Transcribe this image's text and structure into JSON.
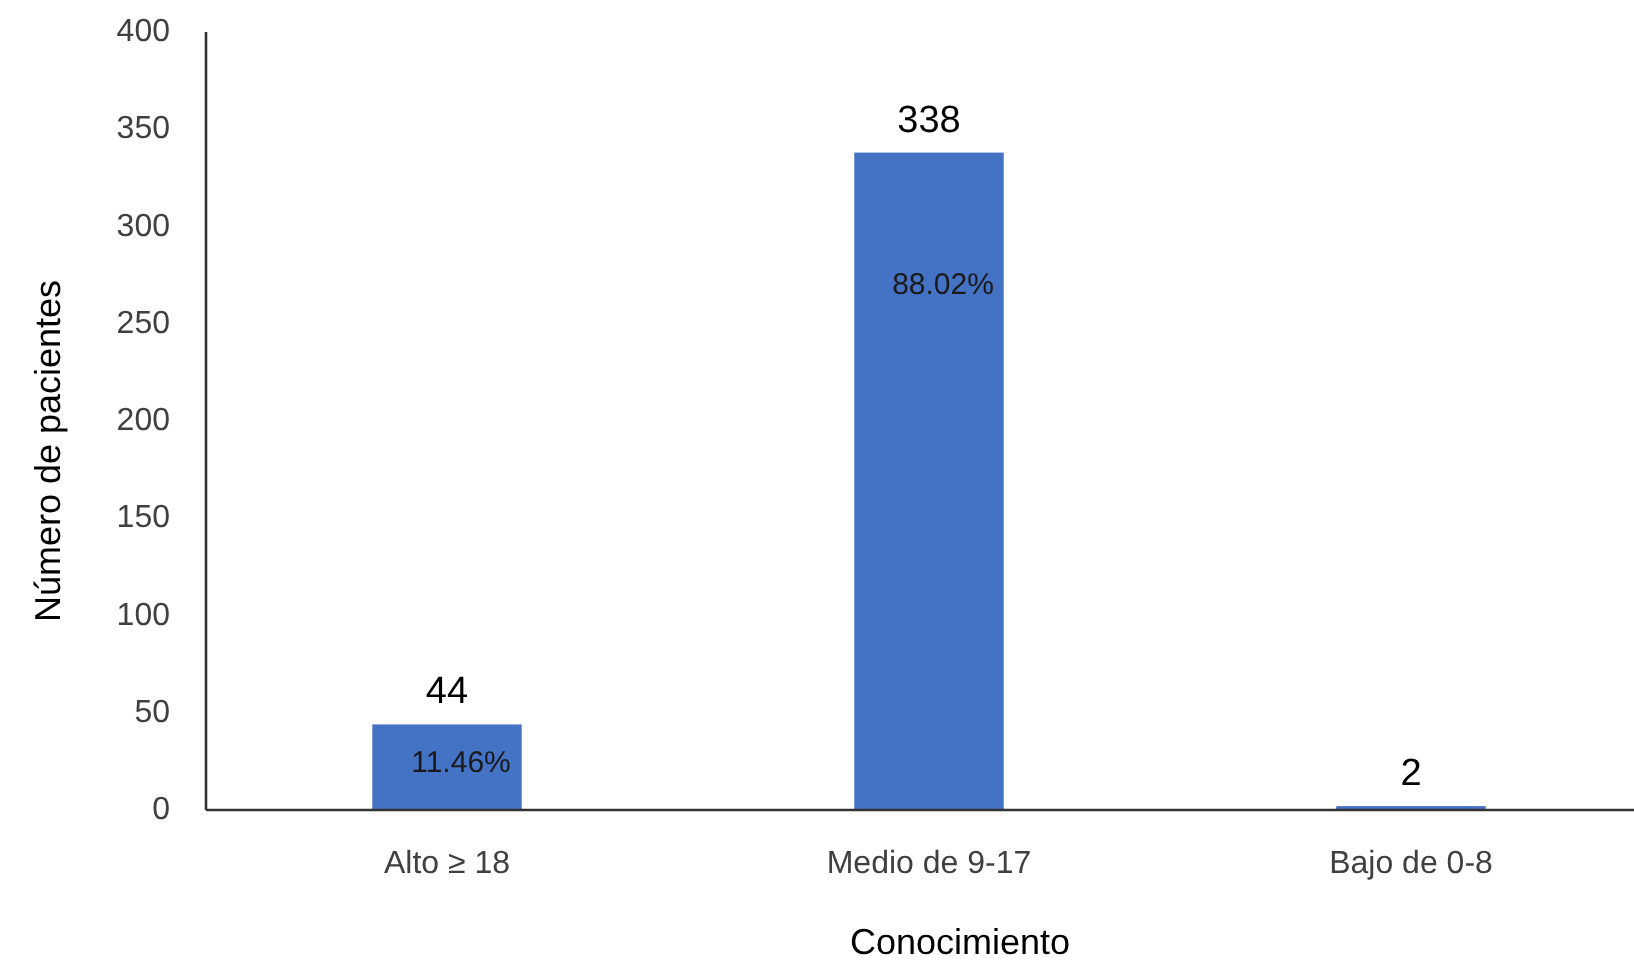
{
  "chart_data": {
    "type": "bar",
    "xlabel": "Conocimiento",
    "ylabel": "Número de pacientes",
    "categories": [
      "Alto ≥ 18",
      "Medio de 9-17",
      "Bajo de 0-8"
    ],
    "values": [
      44,
      338,
      2
    ],
    "color": "#4472c4",
    "ylim": [
      0,
      400
    ],
    "yticks": [
      0,
      50,
      100,
      150,
      200,
      250,
      300,
      350,
      400
    ],
    "grid": false,
    "data_labels": true,
    "annotations": [
      "11.46%",
      "88.02%"
    ]
  }
}
